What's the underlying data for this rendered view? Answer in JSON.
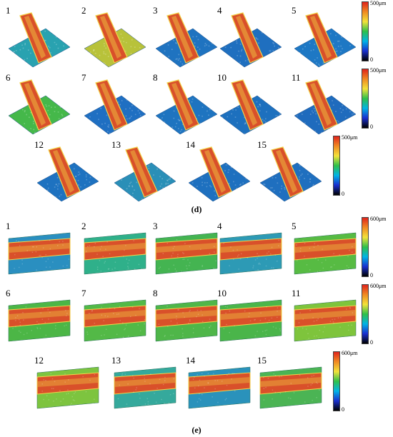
{
  "panel_d": {
    "caption": "(d)",
    "colorbar_rows": [
      {
        "max_label": "500μm",
        "min_label": "0"
      },
      {
        "max_label": "500μm",
        "min_label": "0"
      },
      {
        "max_label": "500μm",
        "min_label": "0"
      }
    ],
    "tiles": [
      {
        "label": "1",
        "row": 0,
        "bg": "#29a2b0"
      },
      {
        "label": "2",
        "row": 0,
        "bg": "#b8c23a"
      },
      {
        "label": "3",
        "row": 0,
        "bg": "#1f73c0"
      },
      {
        "label": "4",
        "row": 0,
        "bg": "#1f6fbf"
      },
      {
        "label": "5",
        "row": 0,
        "bg": "#1e78c4"
      },
      {
        "label": "6",
        "row": 1,
        "bg": "#45b84a"
      },
      {
        "label": "7",
        "row": 1,
        "bg": "#1f6fc2"
      },
      {
        "label": "8",
        "row": 1,
        "bg": "#1e74c0"
      },
      {
        "label": "10",
        "row": 1,
        "bg": "#1d70be"
      },
      {
        "label": "11",
        "row": 1,
        "bg": "#1f6bbd"
      },
      {
        "label": "12",
        "row": 2,
        "bg": "#1e72c0"
      },
      {
        "label": "13",
        "row": 2,
        "bg": "#2a8fb7"
      },
      {
        "label": "14",
        "row": 2,
        "bg": "#1e70bf"
      },
      {
        "label": "15",
        "row": 2,
        "bg": "#1f6fbf"
      }
    ]
  },
  "panel_e": {
    "caption": "(e)",
    "colorbar_rows": [
      {
        "max_label": "600μm",
        "min_label": "0"
      },
      {
        "max_label": "600μm",
        "min_label": "0"
      },
      {
        "max_label": "600μm",
        "min_label": "0"
      }
    ],
    "tiles": [
      {
        "label": "1",
        "row": 0,
        "bg": "#2a8fc0"
      },
      {
        "label": "2",
        "row": 0,
        "bg": "#2fb08a"
      },
      {
        "label": "3",
        "row": 0,
        "bg": "#44b451"
      },
      {
        "label": "4",
        "row": 0,
        "bg": "#2d9ab5"
      },
      {
        "label": "5",
        "row": 0,
        "bg": "#57bb43"
      },
      {
        "label": "6",
        "row": 1,
        "bg": "#4cb646"
      },
      {
        "label": "7",
        "row": 1,
        "bg": "#53b947"
      },
      {
        "label": "8",
        "row": 1,
        "bg": "#4fb649"
      },
      {
        "label": "10",
        "row": 1,
        "bg": "#4ab54a"
      },
      {
        "label": "11",
        "row": 1,
        "bg": "#7ec43c"
      },
      {
        "label": "12",
        "row": 2,
        "bg": "#7dc43f"
      },
      {
        "label": "13",
        "row": 2,
        "bg": "#35a99c"
      },
      {
        "label": "14",
        "row": 2,
        "bg": "#2a92bb"
      },
      {
        "label": "15",
        "row": 2,
        "bg": "#4bb454"
      }
    ]
  },
  "colors": {
    "ridge_high": "#d9502a",
    "ridge_mid": "#e8a03a",
    "edge": "#f2d34a",
    "colorbar_stops": [
      "#000000",
      "#1a2fd0",
      "#00b4e6",
      "#2ec04a",
      "#f2e23a",
      "#f08a22",
      "#e0241c"
    ]
  }
}
